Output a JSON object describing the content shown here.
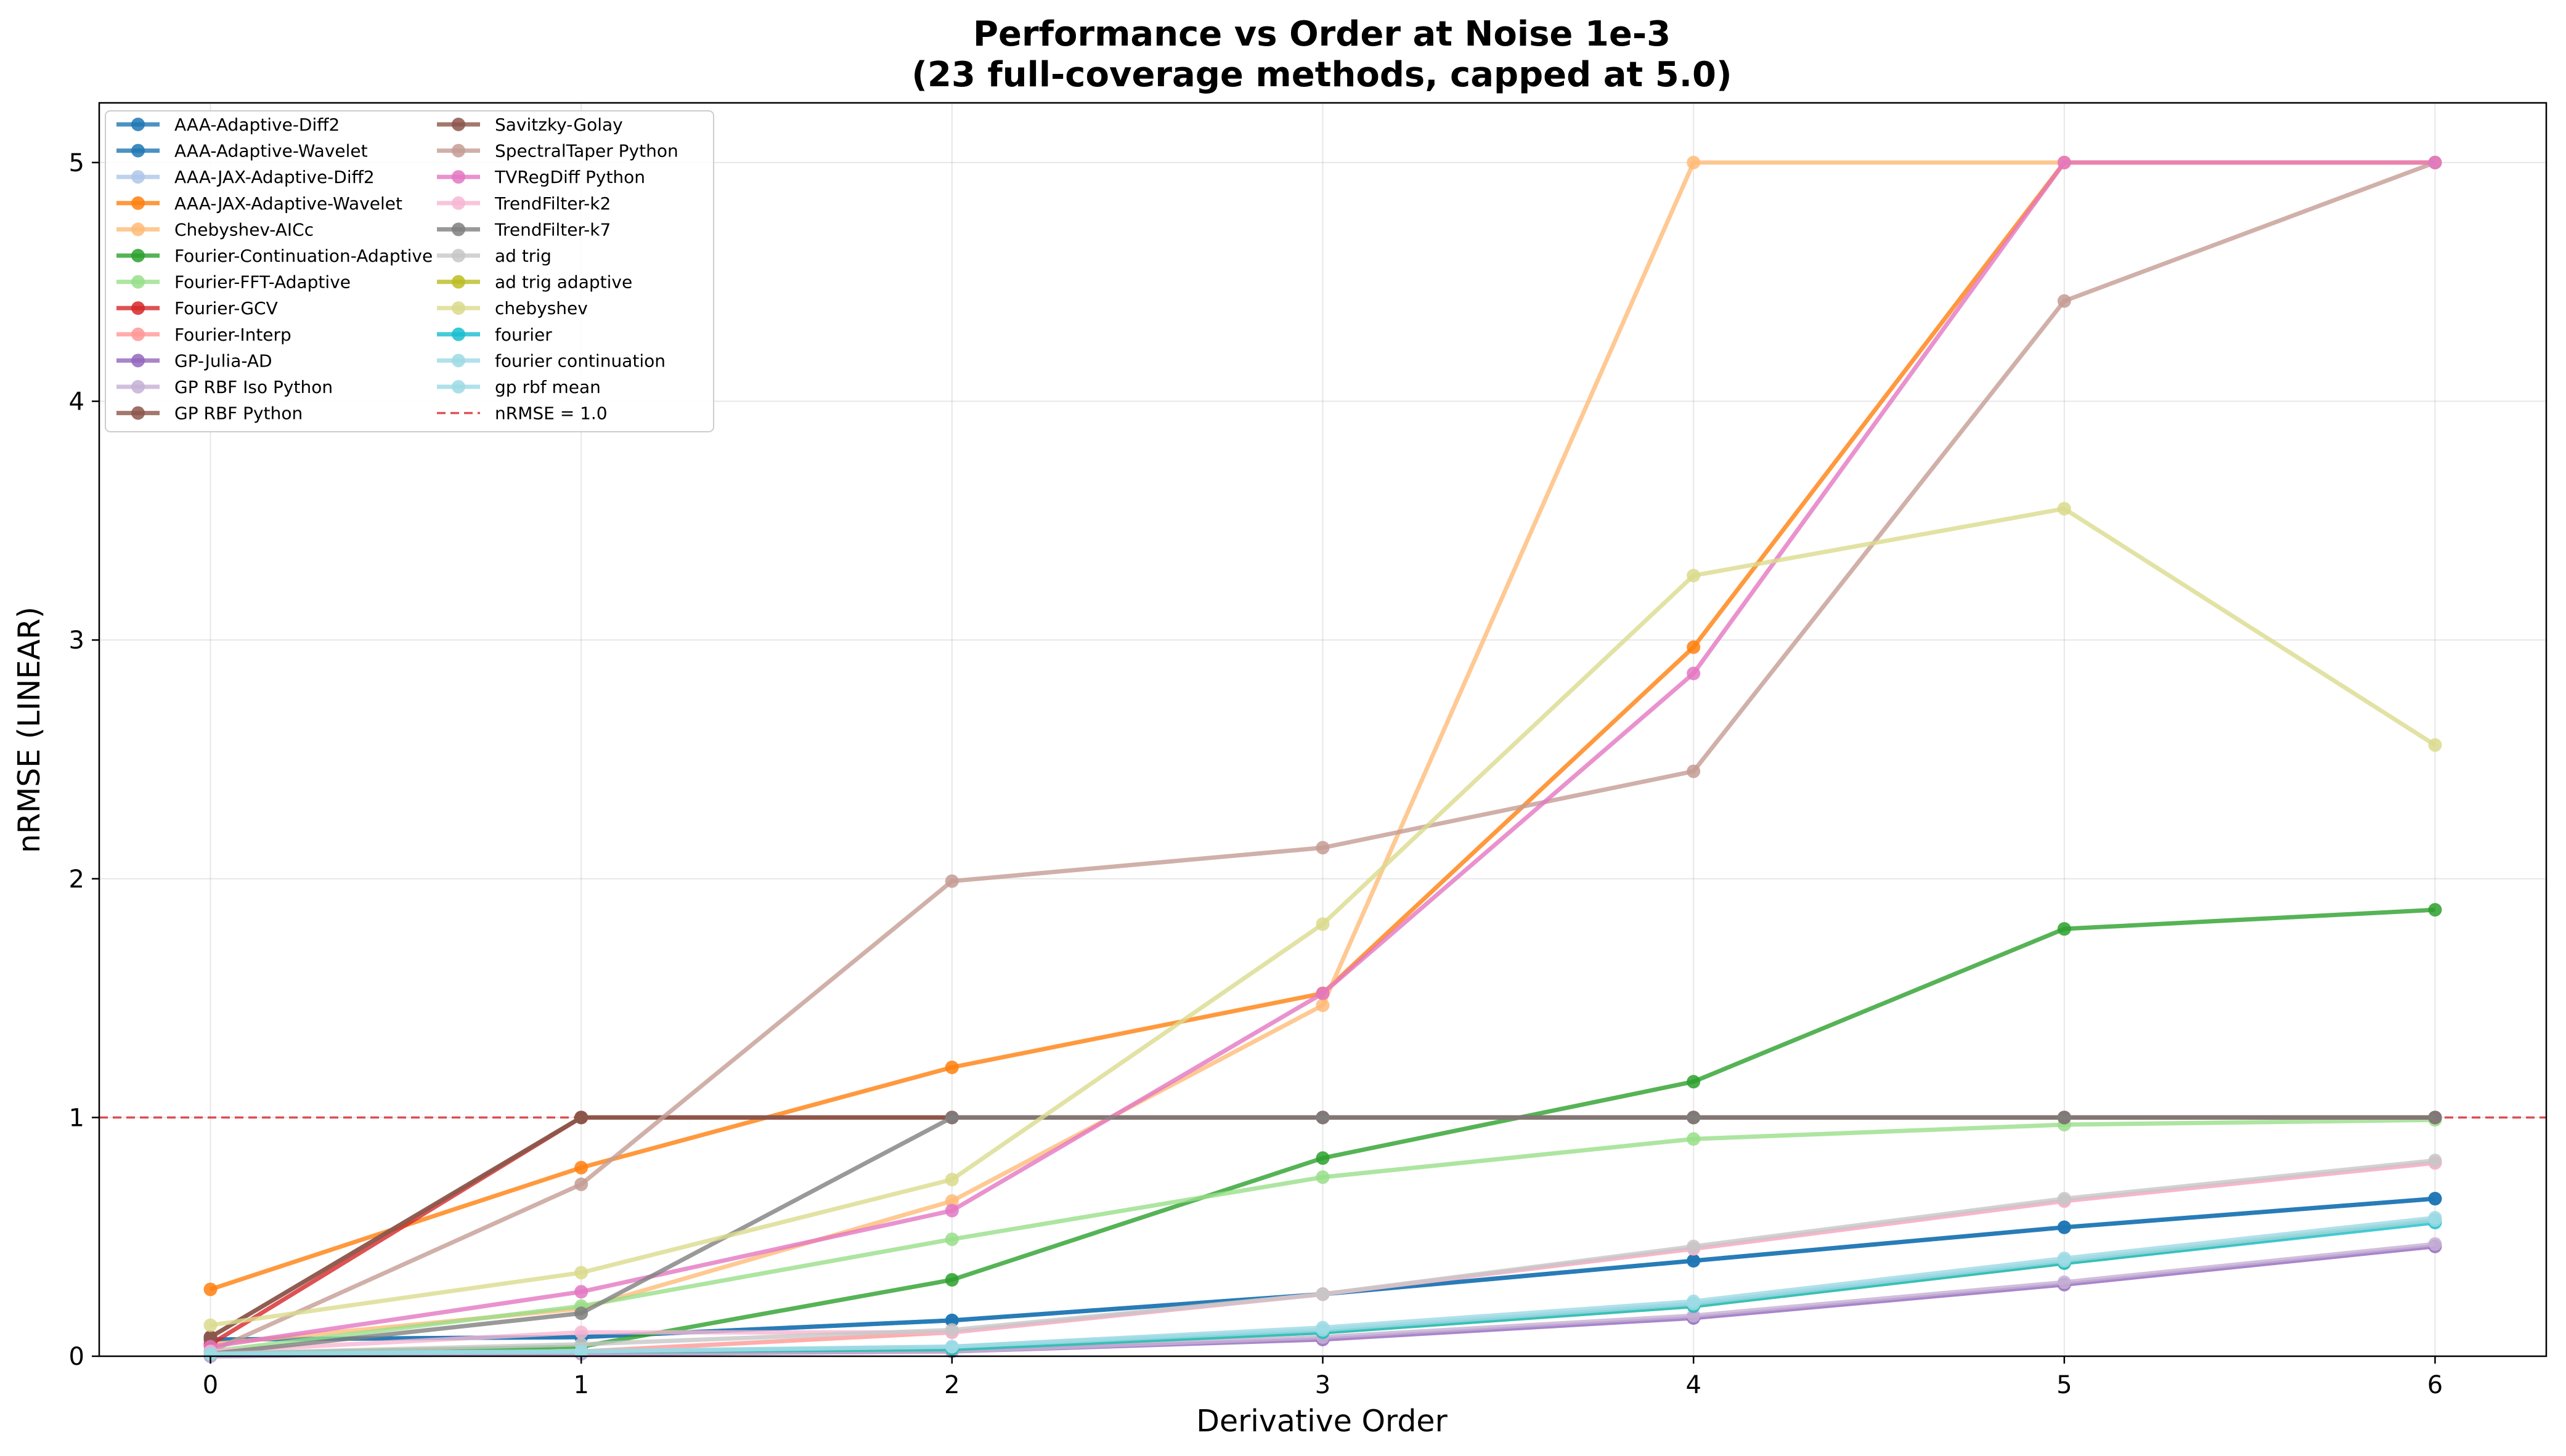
{
  "chart_data": {
    "type": "line",
    "title_line1": "Performance vs Order at Noise 1e-3",
    "title_line2": "(23 full-coverage methods, capped at 5.0)",
    "xlabel": "Derivative Order",
    "ylabel": "nRMSE (LINEAR)",
    "x": [
      0,
      1,
      2,
      3,
      4,
      5,
      6
    ],
    "xlim": [
      -0.3,
      6.3
    ],
    "ylim": [
      0,
      5.25
    ],
    "xticks": [
      "0",
      "1",
      "2",
      "3",
      "4",
      "5",
      "6"
    ],
    "yticks": [
      "0",
      "1",
      "2",
      "3",
      "4",
      "5"
    ],
    "grid": true,
    "legend_position": "upper-left",
    "reference_line": {
      "label": "nRMSE = 1.0",
      "y": 1.0,
      "color": "#d62728",
      "style": "dashed"
    },
    "series": [
      {
        "name": "AAA-Adaptive-Diff2",
        "color": "#1f77b4",
        "values": [
          0.07,
          0.08,
          0.15,
          0.26,
          0.4,
          0.54,
          0.66
        ]
      },
      {
        "name": "AAA-Adaptive-Wavelet",
        "color": "#1f77b4",
        "values": [
          0.07,
          0.08,
          0.15,
          0.26,
          0.4,
          0.54,
          0.66
        ]
      },
      {
        "name": "AAA-JAX-Adaptive-Diff2",
        "color": "#aec7e8",
        "values": [
          0.01,
          0.02,
          0.03,
          0.1,
          0.22,
          0.39,
          0.57
        ]
      },
      {
        "name": "AAA-JAX-Adaptive-Wavelet",
        "color": "#ff7f0e",
        "values": [
          0.28,
          0.79,
          1.21,
          1.52,
          2.97,
          5.0,
          5.0
        ]
      },
      {
        "name": "Chebyshev-AICc",
        "color": "#ffbb78",
        "values": [
          0.05,
          0.2,
          0.65,
          1.47,
          5.0,
          5.0,
          5.0
        ]
      },
      {
        "name": "Fourier-Continuation-Adaptive",
        "color": "#2ca02c",
        "values": [
          0.01,
          0.04,
          0.32,
          0.83,
          1.15,
          1.79,
          1.87
        ]
      },
      {
        "name": "Fourier-FFT-Adaptive",
        "color": "#98df8a",
        "values": [
          0.02,
          0.21,
          0.49,
          0.75,
          0.91,
          0.97,
          0.99
        ]
      },
      {
        "name": "Fourier-GCV",
        "color": "#d62728",
        "values": [
          0.05,
          1.0,
          1.0,
          1.0,
          1.0,
          1.0,
          1.0
        ]
      },
      {
        "name": "Fourier-Interp",
        "color": "#ff9896",
        "values": [
          0.01,
          0.02,
          0.1,
          0.26,
          0.45,
          0.65,
          0.81
        ]
      },
      {
        "name": "GP-Julia-AD",
        "color": "#9467bd",
        "values": [
          0.0,
          0.01,
          0.02,
          0.07,
          0.16,
          0.3,
          0.46
        ]
      },
      {
        "name": "GP RBF Iso Python",
        "color": "#c5b0d5",
        "values": [
          0.0,
          0.01,
          0.02,
          0.08,
          0.17,
          0.31,
          0.47
        ]
      },
      {
        "name": "GP RBF Python",
        "color": "#8c564b",
        "values": [
          0.08,
          1.0,
          1.0,
          1.0,
          1.0,
          1.0,
          1.0
        ]
      },
      {
        "name": "Savitzky-Golay",
        "color": "#8c564b",
        "values": [
          0.08,
          1.0,
          1.0,
          1.0,
          1.0,
          1.0,
          1.0
        ]
      },
      {
        "name": "SpectralTaper Python",
        "color": "#c49c94",
        "values": [
          0.02,
          0.72,
          1.99,
          2.13,
          2.45,
          4.42,
          5.0
        ]
      },
      {
        "name": "TVRegDiff Python",
        "color": "#e377c2",
        "values": [
          0.04,
          0.27,
          0.61,
          1.52,
          2.86,
          5.0,
          5.0
        ]
      },
      {
        "name": "TrendFilter-k2",
        "color": "#f7b6d2",
        "values": [
          0.02,
          0.1,
          0.1,
          0.26,
          0.45,
          0.65,
          0.81
        ]
      },
      {
        "name": "TrendFilter-k7",
        "color": "#7f7f7f",
        "values": [
          0.01,
          0.18,
          1.0,
          1.0,
          1.0,
          1.0,
          1.0
        ]
      },
      {
        "name": "ad trig",
        "color": "#c7c7c7",
        "values": [
          0.01,
          0.05,
          0.11,
          0.26,
          0.46,
          0.66,
          0.82
        ]
      },
      {
        "name": "ad trig adaptive",
        "color": "#bcbd22",
        "values": [
          0.01,
          0.02,
          0.03,
          0.1,
          0.21,
          0.39,
          0.57
        ]
      },
      {
        "name": "chebyshev",
        "color": "#dbdb8d",
        "values": [
          0.13,
          0.35,
          0.74,
          1.81,
          3.27,
          3.55,
          2.56
        ]
      },
      {
        "name": "fourier",
        "color": "#17becf",
        "values": [
          0.01,
          0.02,
          0.03,
          0.1,
          0.21,
          0.39,
          0.56
        ]
      },
      {
        "name": "fourier continuation",
        "color": "#9edae5",
        "values": [
          0.01,
          0.02,
          0.04,
          0.12,
          0.23,
          0.41,
          0.58
        ]
      },
      {
        "name": "gp rbf mean",
        "color": "#9edae5",
        "values": [
          0.01,
          0.02,
          0.04,
          0.11,
          0.22,
          0.4,
          0.57
        ]
      }
    ]
  }
}
